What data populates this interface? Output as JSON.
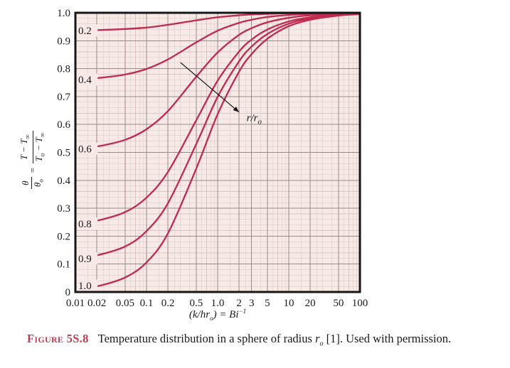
{
  "figure": {
    "caption_label": "Figure",
    "caption_number": "5S.8",
    "caption_before": "Temperature distribution in a sphere of radius ",
    "radius_base": "r",
    "radius_sub": "o",
    "caption_after": " [1]. Used with permission."
  },
  "y_axis_label": {
    "lhs_num": "θ",
    "lhs_den": "θ",
    "lhs_den_sub": "o",
    "eq": "=",
    "rhs_num_a": "T − T",
    "rhs_num_sub": "∞",
    "rhs_den_a": "T",
    "rhs_den_a_sub": "o",
    "rhs_den_b": " − T",
    "rhs_den_b_sub": "∞"
  },
  "x_axis_title": {
    "pre": "(k/hr",
    "sub": "o",
    "mid": ") = Bi",
    "sup": "−1"
  },
  "colors": {
    "curve": "#c02a4e",
    "plot_bg": "#f7e9e6",
    "grid_minor": "#d9c6c3",
    "grid_major": "#9c8a87",
    "border": "#161616",
    "caption_accent": "#c23b55",
    "text": "#1a1a1a"
  },
  "chart_data": {
    "type": "line",
    "title": "",
    "xlabel": "(k/hr_o) = Bi^-1",
    "ylabel": "theta/theta_o = (T - Tinf)/(T_o - Tinf)",
    "x_scale": "log",
    "xlim": [
      0.01,
      100
    ],
    "ylim": [
      0,
      1
    ],
    "grid": "on",
    "legend": "curve labels at left edge are r/r_o values",
    "x": [
      0.01,
      0.02,
      0.05,
      0.1,
      0.2,
      0.5,
      1,
      2,
      3,
      5,
      10,
      20,
      50,
      100
    ],
    "series": [
      {
        "name": "0.2",
        "values": [
          0.937,
          0.938,
          0.942,
          0.947,
          0.957,
          0.973,
          0.984,
          0.991,
          0.994,
          0.996,
          0.998,
          0.999,
          1.0,
          1.0
        ]
      },
      {
        "name": "0.4",
        "values": [
          0.761,
          0.766,
          0.779,
          0.799,
          0.833,
          0.894,
          0.936,
          0.964,
          0.975,
          0.985,
          0.992,
          0.996,
          0.998,
          0.999
        ]
      },
      {
        "name": "0.6",
        "values": [
          0.513,
          0.521,
          0.545,
          0.583,
          0.648,
          0.771,
          0.858,
          0.921,
          0.945,
          0.966,
          0.982,
          0.991,
          0.996,
          0.998
        ]
      },
      {
        "name": "0.8",
        "values": [
          0.244,
          0.255,
          0.286,
          0.338,
          0.43,
          0.615,
          0.757,
          0.861,
          0.904,
          0.94,
          0.969,
          0.984,
          0.994,
          0.997
        ]
      },
      {
        "name": "0.9",
        "values": [
          0.12,
          0.131,
          0.163,
          0.218,
          0.318,
          0.53,
          0.699,
          0.826,
          0.879,
          0.924,
          0.961,
          0.98,
          0.992,
          0.996
        ]
      },
      {
        "name": "1.0",
        "values": [
          0.01,
          0.02,
          0.052,
          0.106,
          0.21,
          0.442,
          0.637,
          0.789,
          0.852,
          0.907,
          0.952,
          0.975,
          0.99,
          0.995
        ]
      }
    ],
    "x_ticks": [
      {
        "v": 0.01,
        "label": "0.01"
      },
      {
        "v": 0.02,
        "label": "0.02"
      },
      {
        "v": 0.05,
        "label": "0.05"
      },
      {
        "v": 0.1,
        "label": "0.1"
      },
      {
        "v": 0.2,
        "label": "0.2"
      },
      {
        "v": 0.5,
        "label": "0.5"
      },
      {
        "v": 1,
        "label": "1.0"
      },
      {
        "v": 2,
        "label": "2"
      },
      {
        "v": 3,
        "label": "3"
      },
      {
        "v": 5,
        "label": "5"
      },
      {
        "v": 10,
        "label": "10"
      },
      {
        "v": 20,
        "label": "20"
      },
      {
        "v": 50,
        "label": "50"
      },
      {
        "v": 100,
        "label": "100"
      }
    ],
    "y_ticks": [
      {
        "v": 0,
        "label": "0"
      },
      {
        "v": 0.1,
        "label": "0.1"
      },
      {
        "v": 0.2,
        "label": "0.2"
      },
      {
        "v": 0.3,
        "label": "0.3"
      },
      {
        "v": 0.4,
        "label": "0.4"
      },
      {
        "v": 0.5,
        "label": "0.5"
      },
      {
        "v": 0.6,
        "label": "0.6"
      },
      {
        "v": 0.7,
        "label": "0.7"
      },
      {
        "v": 0.8,
        "label": "0.8"
      },
      {
        "v": 0.9,
        "label": "0.9"
      },
      {
        "v": 1.0,
        "label": "1.0"
      }
    ],
    "annotation": {
      "arrow_from": [
        0.3,
        0.822
      ],
      "arrow_to": [
        2.0,
        0.644
      ],
      "label_at": [
        2.55,
        0.612
      ],
      "label_base": "r/r",
      "label_sub": "o"
    }
  }
}
